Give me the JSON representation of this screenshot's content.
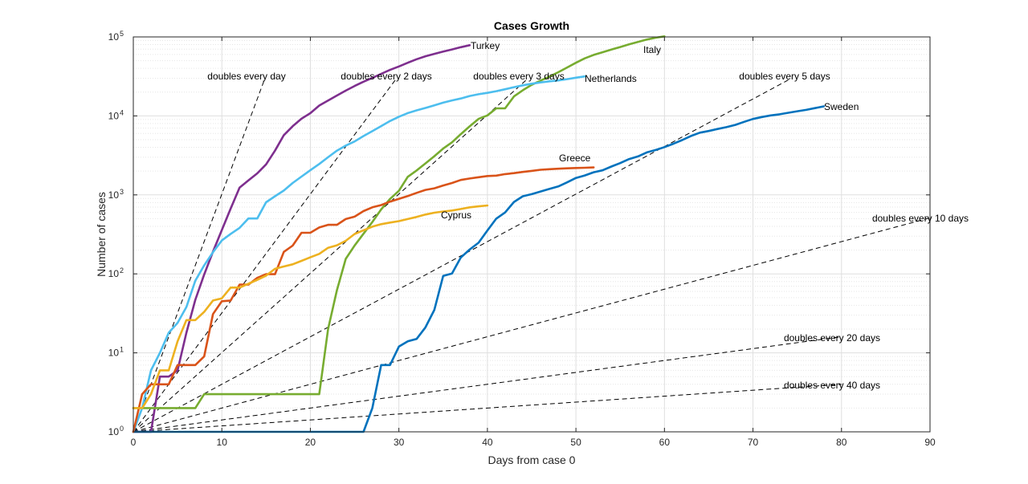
{
  "chart_data": {
    "type": "line",
    "title": "Cases Growth",
    "xlabel": "Days from case 0",
    "ylabel": "Number of cases",
    "xlim": [
      0,
      90
    ],
    "ylim_exponent": [
      0,
      5
    ],
    "yscale": "log",
    "grid": true,
    "x_ticks": [
      "0",
      "10",
      "20",
      "30",
      "40",
      "50",
      "60",
      "70",
      "80",
      "90"
    ],
    "y_tick_base": "10",
    "y_tick_exponents": [
      "0",
      "1",
      "2",
      "3",
      "4",
      "5"
    ],
    "reference_lines": [
      {
        "label": "doubles every day",
        "doubling_days": 1
      },
      {
        "label": "doubles every 2 days",
        "doubling_days": 2
      },
      {
        "label": "doubles every 3 days",
        "doubling_days": 3
      },
      {
        "label": "doubles every 5 days",
        "doubling_days": 5
      },
      {
        "label": "doubles every 10 days",
        "doubling_days": 10
      },
      {
        "label": "doubles every 20 days",
        "doubling_days": 20
      },
      {
        "label": "doubles every 40 days",
        "doubling_days": 40
      }
    ],
    "series": [
      {
        "name": "Turkey",
        "color": "#7e2f8e",
        "x": [
          0,
          1,
          2,
          3,
          4,
          5,
          6,
          7,
          8,
          9,
          10,
          11,
          12,
          13,
          14,
          15,
          16,
          17,
          18,
          19,
          20,
          21,
          22,
          23,
          24,
          25,
          26,
          27,
          28,
          29,
          30,
          31,
          32,
          33,
          34,
          35,
          36,
          37,
          38
        ],
        "y": [
          1,
          1,
          1,
          5,
          5,
          6,
          18,
          47,
          98,
          191,
          359,
          670,
          1236,
          1529,
          1872,
          2433,
          3629,
          5698,
          7402,
          9217,
          10827,
          13531,
          15679,
          18135,
          20921,
          23934,
          27069,
          30217,
          34109,
          38226,
          42282,
          47029,
          52167,
          56956,
          61049,
          65111,
          69392,
          74193,
          78546
        ]
      },
      {
        "name": "Italy",
        "color": "#77ac30",
        "x": [
          0,
          1,
          2,
          3,
          4,
          5,
          6,
          7,
          8,
          9,
          10,
          11,
          12,
          13,
          14,
          15,
          16,
          17,
          18,
          19,
          20,
          21,
          22,
          23,
          24,
          25,
          26,
          27,
          28,
          29,
          30,
          31,
          32,
          33,
          34,
          35,
          36,
          37,
          38,
          39,
          40,
          41,
          42,
          43,
          44,
          45,
          46,
          47,
          48,
          49,
          50,
          51,
          52,
          53,
          54,
          55,
          56,
          57,
          58,
          59,
          60
        ],
        "y": [
          2,
          2,
          2,
          2,
          2,
          2,
          2,
          2,
          3,
          3,
          3,
          3,
          3,
          3,
          3,
          3,
          3,
          3,
          3,
          3,
          3,
          3,
          20,
          62,
          155,
          229,
          322,
          453,
          655,
          888,
          1128,
          1694,
          2036,
          2502,
          3089,
          3858,
          4636,
          5883,
          7375,
          9172,
          10149,
          12462,
          12462,
          17660,
          21157,
          24747,
          27980,
          31506,
          35713,
          41035,
          47021,
          53578,
          59138,
          63927,
          69176,
          74386,
          80589,
          86498,
          92472,
          97689,
          101739
        ]
      },
      {
        "name": "Netherlands",
        "color": "#4dbeee",
        "x": [
          0,
          1,
          2,
          3,
          4,
          5,
          6,
          7,
          8,
          9,
          10,
          11,
          12,
          13,
          14,
          15,
          16,
          17,
          18,
          19,
          20,
          21,
          22,
          23,
          24,
          25,
          26,
          27,
          28,
          29,
          30,
          31,
          32,
          33,
          34,
          35,
          36,
          37,
          38,
          39,
          40,
          41,
          42,
          43,
          44,
          45,
          46,
          47,
          48,
          49,
          50,
          51
        ],
        "y": [
          1,
          2,
          6,
          10,
          18,
          24,
          38,
          82,
          128,
          188,
          265,
          321,
          382,
          503,
          503,
          806,
          962,
          1135,
          1413,
          1705,
          2051,
          2460,
          2994,
          3631,
          4204,
          4749,
          5560,
          6412,
          7431,
          8603,
          9762,
          10866,
          11750,
          12595,
          13614,
          14697,
          15723,
          16627,
          17851,
          18803,
          19580,
          20549,
          21762,
          23097,
          24413,
          25587,
          26551,
          27419,
          28153,
          29214,
          30449,
          31589
        ]
      },
      {
        "name": "Sweden",
        "color": "#0072bd",
        "x": [
          0,
          1,
          2,
          3,
          4,
          5,
          6,
          7,
          8,
          9,
          10,
          11,
          12,
          13,
          14,
          15,
          16,
          17,
          18,
          19,
          20,
          21,
          22,
          23,
          24,
          25,
          26,
          27,
          28,
          29,
          30,
          31,
          32,
          33,
          34,
          35,
          36,
          37,
          38,
          39,
          40,
          41,
          42,
          43,
          44,
          45,
          46,
          47,
          48,
          49,
          50,
          51,
          52,
          53,
          54,
          55,
          56,
          57,
          58,
          59,
          60,
          61,
          62,
          63,
          64,
          65,
          66,
          67,
          68,
          69,
          70,
          71,
          72,
          73,
          74,
          75,
          76,
          77,
          78
        ],
        "y": [
          1,
          1,
          1,
          1,
          1,
          1,
          1,
          1,
          1,
          1,
          1,
          1,
          1,
          1,
          1,
          1,
          1,
          1,
          1,
          1,
          1,
          1,
          1,
          1,
          1,
          1,
          1,
          2,
          7,
          7,
          12,
          14,
          15,
          21,
          35,
          94,
          101,
          161,
          203,
          248,
          355,
          500,
          599,
          814,
          961,
          1022,
          1103,
          1190,
          1279,
          1439,
          1639,
          1763,
          1934,
          2046,
          2286,
          2526,
          2840,
          3069,
          3447,
          3700,
          4028,
          4435,
          4947,
          5568,
          6131,
          6443,
          6830,
          7206,
          7693,
          8419,
          9141,
          9685,
          10151,
          10483,
          10948,
          11445,
          11927,
          12540,
          13216
        ]
      },
      {
        "name": "Greece",
        "color": "#d95319",
        "x": [
          0,
          1,
          2,
          3,
          4,
          5,
          6,
          7,
          8,
          9,
          10,
          11,
          12,
          13,
          14,
          15,
          16,
          17,
          18,
          19,
          20,
          21,
          22,
          23,
          24,
          25,
          26,
          27,
          28,
          29,
          30,
          31,
          32,
          33,
          34,
          35,
          36,
          37,
          38,
          39,
          40,
          41,
          42,
          43,
          44,
          45,
          46,
          47,
          48,
          49,
          50,
          51,
          52
        ],
        "y": [
          1,
          3,
          4,
          4,
          4,
          7,
          7,
          7,
          9,
          31,
          45,
          46,
          73,
          73,
          89,
          99,
          99,
          190,
          228,
          331,
          331,
          387,
          418,
          418,
          495,
          530,
          624,
          695,
          743,
          821,
          892,
          966,
          1061,
          1156,
          1212,
          1314,
          1415,
          1544,
          1613,
          1673,
          1735,
          1755,
          1832,
          1884,
          1955,
          2011,
          2081,
          2114,
          2145,
          2170,
          2192,
          2207,
          2224
        ]
      },
      {
        "name": "Cyprus",
        "color": "#edb120",
        "x": [
          0,
          1,
          2,
          3,
          4,
          5,
          6,
          7,
          8,
          9,
          10,
          11,
          12,
          13,
          14,
          15,
          16,
          17,
          18,
          19,
          20,
          21,
          22,
          23,
          24,
          25,
          26,
          27,
          28,
          29,
          30,
          31,
          32,
          33,
          34,
          35,
          36,
          37,
          38,
          39,
          40
        ],
        "y": [
          2,
          2,
          3,
          6,
          6,
          14,
          26,
          26,
          33,
          46,
          49,
          67,
          67,
          75,
          84,
          95,
          116,
          124,
          132,
          146,
          162,
          179,
          214,
          230,
          262,
          320,
          356,
          396,
          426,
          446,
          465,
          494,
          526,
          564,
          595,
          616,
          633,
          662,
          695,
          715,
          735
        ]
      }
    ],
    "series_labels": [
      "Turkey",
      "Italy",
      "Netherlands",
      "Sweden",
      "Greece",
      "Cyprus"
    ]
  }
}
